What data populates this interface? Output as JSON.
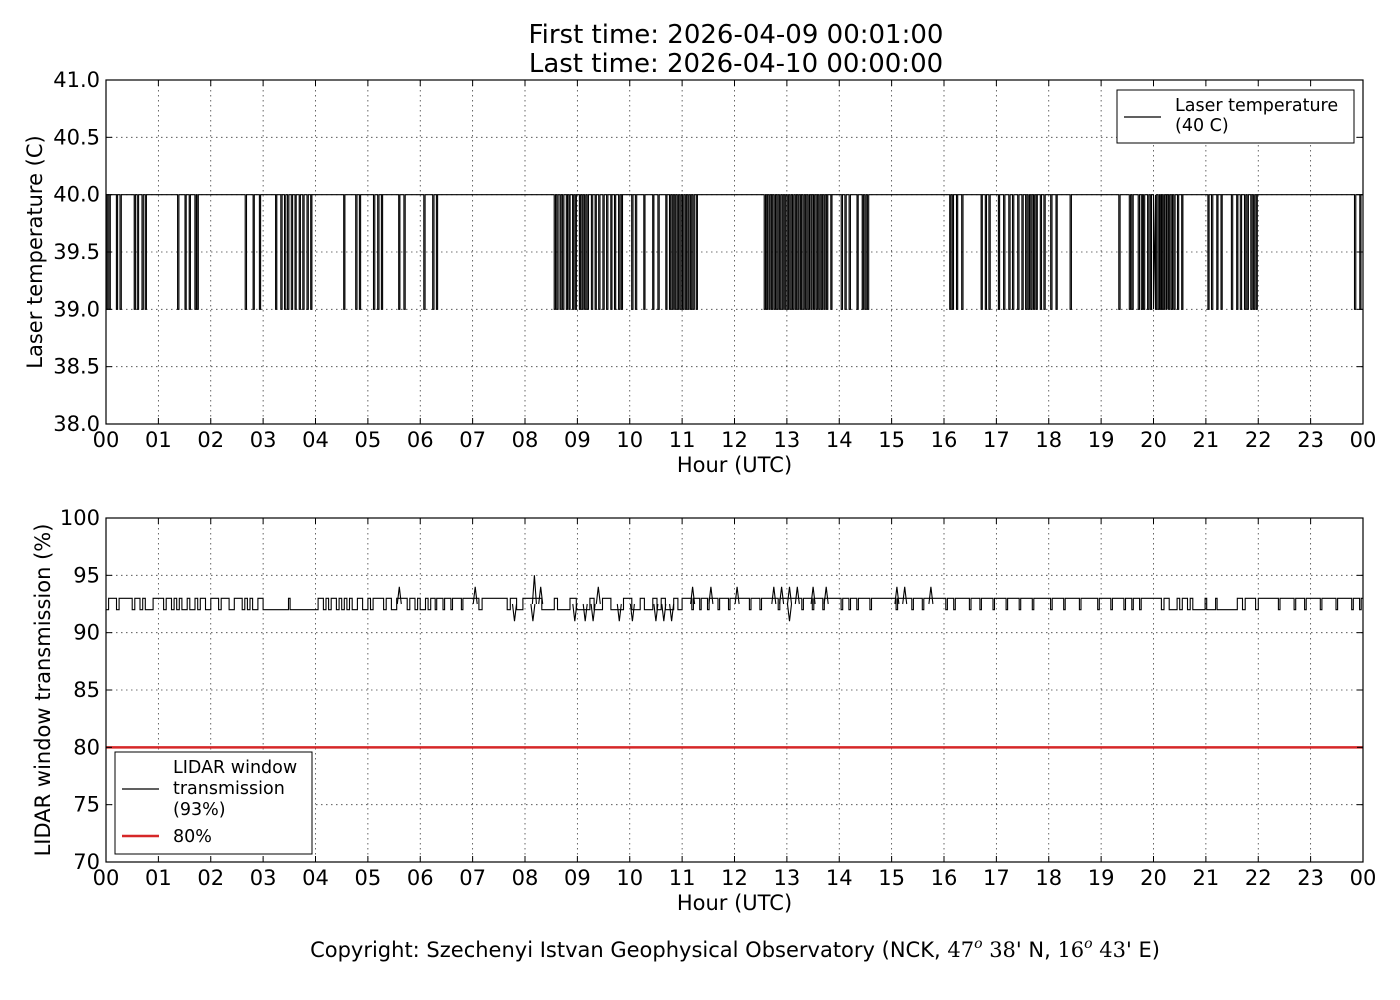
{
  "header": {
    "title_line1": "First time: 2026-04-09 00:01:00",
    "title_line2": "Last time: 2026-04-10 00:00:00"
  },
  "footer": {
    "copyright_prefix": "Copyright: Szechenyi Istvan Geophysical Observatory (NCK, ",
    "lat_deg": "47",
    "lat_min": " 38",
    "lat_hem": "' N, ",
    "lon_deg": "16",
    "lon_min": " 43",
    "lon_hem": "' E)",
    "degree_mark": "o"
  },
  "chart_data": [
    {
      "type": "line",
      "ylabel": "Laser temperature (C)",
      "xlabel": "Hour (UTC)",
      "ylim": [
        38.0,
        41.0
      ],
      "yticks": [
        "38.0",
        "38.5",
        "39.0",
        "39.5",
        "40.0",
        "40.5",
        "41.0"
      ],
      "xlim": [
        0,
        24
      ],
      "xticks": [
        "00",
        "01",
        "02",
        "03",
        "04",
        "05",
        "06",
        "07",
        "08",
        "09",
        "10",
        "11",
        "12",
        "13",
        "14",
        "15",
        "16",
        "17",
        "18",
        "19",
        "20",
        "21",
        "22",
        "23",
        "00"
      ],
      "grid": true,
      "legend_position": "top-right",
      "series": [
        {
          "name": "Laser temperature\n(40 C)",
          "color": "#000000",
          "baseline": 40.0,
          "dip_value": 39.0,
          "dip_hours": [
            0.02,
            0.07,
            0.21,
            0.28,
            0.55,
            0.61,
            0.7,
            0.76,
            1.38,
            1.52,
            1.6,
            1.71,
            1.75,
            2.67,
            2.82,
            2.94,
            3.25,
            3.35,
            3.42,
            3.48,
            3.55,
            3.62,
            3.7,
            3.77,
            3.85,
            3.92,
            4.55,
            4.78,
            4.85,
            5.12,
            5.2,
            5.27,
            5.6,
            5.7,
            6.08,
            6.25,
            6.32,
            8.57,
            8.62,
            8.68,
            8.73,
            8.8,
            8.85,
            8.92,
            8.97,
            9.05,
            9.1,
            9.15,
            9.2,
            9.28,
            9.35,
            9.42,
            9.5,
            9.57,
            9.65,
            9.72,
            9.8,
            9.85,
            10.05,
            10.12,
            10.28,
            10.45,
            10.55,
            10.7,
            10.77,
            10.82,
            10.87,
            10.92,
            10.97,
            11.02,
            11.07,
            11.12,
            11.17,
            11.22,
            11.28,
            12.58,
            12.62,
            12.67,
            12.72,
            12.77,
            12.82,
            12.87,
            12.92,
            12.97,
            13.02,
            13.07,
            13.12,
            13.17,
            13.22,
            13.27,
            13.32,
            13.37,
            13.42,
            13.47,
            13.52,
            13.57,
            13.62,
            13.67,
            13.72,
            13.77,
            13.85,
            14.05,
            14.12,
            14.2,
            14.35,
            14.45,
            14.5,
            14.55,
            16.12,
            16.17,
            16.25,
            16.35,
            16.72,
            16.8,
            16.87,
            17.05,
            17.15,
            17.25,
            17.32,
            17.42,
            17.5,
            17.57,
            17.62,
            17.67,
            17.72,
            17.77,
            17.85,
            17.92,
            18.05,
            18.15,
            18.42,
            19.35,
            19.55,
            19.6,
            19.72,
            19.78,
            19.82,
            19.9,
            19.95,
            20.05,
            20.1,
            20.13,
            20.17,
            20.2,
            20.25,
            20.3,
            20.35,
            20.4,
            20.47,
            20.55,
            21.05,
            21.12,
            21.22,
            21.3,
            21.5,
            21.6,
            21.67,
            21.75,
            21.8,
            21.87,
            21.92,
            21.97,
            23.85,
            23.95
          ],
          "dip_ranges": [
            [
              20.0,
              20.25
            ]
          ]
        }
      ]
    },
    {
      "type": "line",
      "ylabel": "LIDAR window transmission (%)",
      "xlabel": "Hour (UTC)",
      "ylim": [
        70,
        100
      ],
      "yticks": [
        "70",
        "75",
        "80",
        "85",
        "90",
        "95",
        "100"
      ],
      "xlim": [
        0,
        24
      ],
      "xticks": [
        "00",
        "01",
        "02",
        "03",
        "04",
        "05",
        "06",
        "07",
        "08",
        "09",
        "10",
        "11",
        "12",
        "13",
        "14",
        "15",
        "16",
        "17",
        "18",
        "19",
        "20",
        "21",
        "22",
        "23",
        "00"
      ],
      "grid": true,
      "legend_position": "bottom-left",
      "series": [
        {
          "name": "LIDAR window\ntransmission\n(93%)",
          "color": "#000000",
          "segments": [
            {
              "from": 0,
              "to": 3.0,
              "low": 92,
              "high": 93,
              "step": 0.05
            },
            {
              "from": 3.0,
              "to": 4.0,
              "level": 92,
              "spikes": [
                [
                  3.5,
                  93
                ]
              ]
            },
            {
              "from": 4.0,
              "to": 6.2,
              "low": 92,
              "high": 93,
              "step": 0.05
            },
            {
              "from": 6.2,
              "to": 7.0,
              "level": 93,
              "dips": [
                6.3,
                6.45,
                6.6,
                6.8
              ]
            },
            {
              "from": 7.0,
              "to": 9.0,
              "low": 92,
              "high": 93,
              "step": 0.06
            },
            {
              "from": 9.0,
              "to": 11.0,
              "low": 92,
              "high": 93,
              "step": 0.08
            },
            {
              "from": 11.0,
              "to": 19.0,
              "level": 93,
              "dips": [
                11.2,
                11.35,
                11.5,
                11.7,
                11.9,
                12.3,
                12.5,
                12.85,
                13.3,
                13.5,
                13.7,
                14.05,
                14.2,
                14.35,
                14.6,
                15.1,
                15.4,
                15.6,
                16.05,
                16.2,
                16.5,
                16.7,
                16.95,
                17.2,
                17.45,
                17.7,
                18.05,
                18.3,
                18.6,
                18.95
              ]
            },
            {
              "from": 19.0,
              "to": 20.0,
              "level": 93,
              "dips": [
                19.2,
                19.45,
                19.6,
                19.75
              ]
            },
            {
              "from": 20.0,
              "to": 20.8,
              "low": 92,
              "high": 93,
              "step": 0.05
            },
            {
              "from": 20.8,
              "to": 21.5,
              "level": 92,
              "spikes": [
                21.0,
                21.2
              ]
            },
            {
              "from": 21.5,
              "to": 22.2,
              "low": 92,
              "high": 93,
              "step": 0.05
            },
            {
              "from": 22.2,
              "to": 24.0,
              "level": 93,
              "dips": [
                22.4,
                22.7,
                22.9,
                23.2,
                23.5,
                23.8,
                23.95
              ]
            }
          ],
          "peaks": [
            [
              5.6,
              94
            ],
            [
              7.05,
              94
            ],
            [
              8.18,
              95
            ],
            [
              8.3,
              94
            ],
            [
              9.4,
              94
            ],
            [
              11.2,
              94
            ],
            [
              11.55,
              94
            ],
            [
              12.05,
              94
            ],
            [
              12.75,
              94
            ],
            [
              12.9,
              94
            ],
            [
              13.05,
              94
            ],
            [
              13.2,
              94
            ],
            [
              13.5,
              94
            ],
            [
              13.75,
              94
            ],
            [
              15.1,
              94
            ],
            [
              15.25,
              94
            ],
            [
              15.75,
              94
            ]
          ],
          "troughs": [
            [
              7.8,
              91
            ],
            [
              8.15,
              91
            ],
            [
              8.95,
              91
            ],
            [
              9.15,
              91
            ],
            [
              9.3,
              91
            ],
            [
              9.8,
              91
            ],
            [
              10.05,
              91
            ],
            [
              10.5,
              91
            ],
            [
              10.65,
              91
            ],
            [
              10.8,
              91
            ],
            [
              13.05,
              91
            ]
          ]
        },
        {
          "name": "80%",
          "color": "#d62728",
          "constant": 80
        }
      ]
    }
  ]
}
